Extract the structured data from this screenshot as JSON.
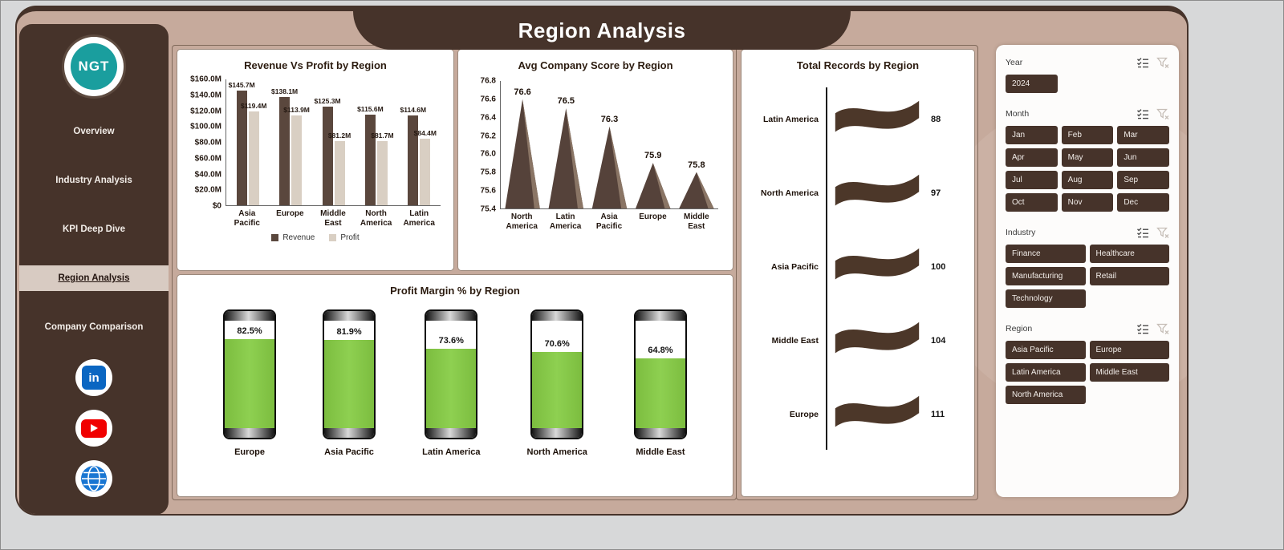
{
  "header": {
    "title": "Region Analysis"
  },
  "sidebar": {
    "logo_text": "NGT",
    "items": [
      {
        "label": "Overview",
        "active": false
      },
      {
        "label": "Industry Analysis",
        "active": false
      },
      {
        "label": "KPI Deep Dive",
        "active": false
      },
      {
        "label": "Region Analysis",
        "active": true
      },
      {
        "label": "Company Comparison",
        "active": false
      }
    ],
    "social": [
      "linkedin",
      "youtube",
      "website"
    ]
  },
  "chart_data": [
    {
      "type": "bar",
      "title": "Revenue Vs Profit by Region",
      "categories": [
        "Asia Pacific",
        "Europe",
        "Middle East",
        "North America",
        "Latin America"
      ],
      "series": [
        {
          "name": "Revenue",
          "values": [
            145.7,
            138.1,
            125.3,
            115.6,
            114.6
          ],
          "labels": [
            "$145.7M",
            "$138.1M",
            "$125.3M",
            "$115.6M",
            "$114.6M"
          ],
          "color": "#5a473d"
        },
        {
          "name": "Profit",
          "values": [
            119.4,
            113.9,
            81.2,
            81.7,
            84.4
          ],
          "labels": [
            "$119.4M",
            "$113.9M",
            "$81.2M",
            "$81.7M",
            "$84.4M"
          ],
          "color": "#d9cfc3"
        }
      ],
      "ylim": [
        0,
        160
      ],
      "yticks": [
        "$160.0M",
        "$140.0M",
        "$120.0M",
        "$100.0M",
        "$80.0M",
        "$60.0M",
        "$40.0M",
        "$20.0M",
        "$0"
      ],
      "legend_position": "bottom",
      "grid": false
    },
    {
      "type": "triangle-bar",
      "title": "Avg Company Score by Region",
      "categories": [
        "North America",
        "Latin America",
        "Asia Pacific",
        "Europe",
        "Middle East"
      ],
      "values": [
        76.6,
        76.5,
        76.3,
        75.9,
        75.8
      ],
      "ylim": [
        75.4,
        76.8
      ],
      "yticks": [
        "76.8",
        "76.6",
        "76.4",
        "76.2",
        "76.0",
        "75.8",
        "75.6",
        "75.4"
      ],
      "grid": false
    },
    {
      "type": "battery-gauge",
      "title": "Profit Margin % by Region",
      "categories": [
        "Europe",
        "Asia Pacific",
        "Latin America",
        "North America",
        "Middle East"
      ],
      "values": [
        82.5,
        81.9,
        73.6,
        70.6,
        64.8
      ],
      "labels": [
        "82.5%",
        "81.9%",
        "73.6%",
        "70.6%",
        "64.8%"
      ],
      "fill_color": "#8ed051"
    },
    {
      "type": "wave-bar",
      "title": "Total Records by Region",
      "categories": [
        "Latin America",
        "North America",
        "Asia Pacific",
        "Middle East",
        "Europe"
      ],
      "values": [
        88,
        97,
        100,
        104,
        111
      ],
      "shape_color": "#4c3729"
    }
  ],
  "slicers": [
    {
      "label": "Year",
      "cols": 3,
      "options": [
        "2024"
      ]
    },
    {
      "label": "Month",
      "cols": 3,
      "options": [
        "Jan",
        "Feb",
        "Mar",
        "Apr",
        "May",
        "Jun",
        "Jul",
        "Aug",
        "Sep",
        "Oct",
        "Nov",
        "Dec"
      ]
    },
    {
      "label": "Industry",
      "cols": 2,
      "options": [
        "Finance",
        "Healthcare",
        "Manufacturing",
        "Retail",
        "Technology"
      ]
    },
    {
      "label": "Region",
      "cols": 2,
      "options": [
        "Asia Pacific",
        "Europe",
        "Latin America",
        "Middle East",
        "North America"
      ]
    }
  ],
  "colors": {
    "accent_dark": "#46332a",
    "page_bg": "#c6aa9c",
    "active_item_bg": "#d8cbc2",
    "green_fill": "#8ed051"
  }
}
